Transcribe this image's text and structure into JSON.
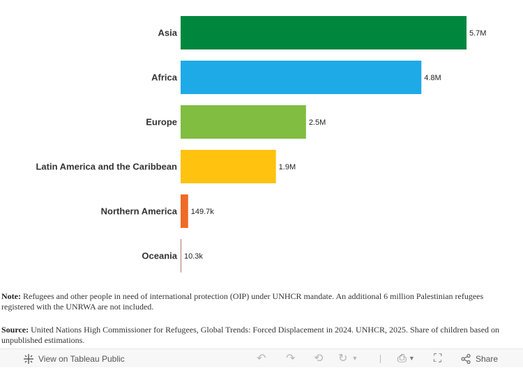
{
  "chart_data": {
    "type": "bar",
    "orientation": "horizontal",
    "categories": [
      "Asia",
      "Africa",
      "Europe",
      "Latin America and the Caribbean",
      "Northern America",
      "Oceania"
    ],
    "values": [
      5700000,
      4800000,
      2500000,
      1900000,
      149700,
      10300
    ],
    "value_labels": [
      "5.7M",
      "4.8M",
      "2.5M",
      "1.9M",
      "149.7k",
      "10.3k"
    ],
    "colors": [
      "#00873e",
      "#1eaae7",
      "#80bd41",
      "#ffc20e",
      "#ef6a25",
      "#a9756a"
    ],
    "title": "",
    "xlabel": "",
    "ylabel": "",
    "grid": false,
    "legend": "none"
  },
  "note": {
    "label": "Note:",
    "text": " Refugees and other people in need of international protection (OIP) under UNHCR mandate. An additional 6 million Palestinian refugees registered with the UNRWA are not included."
  },
  "source": {
    "label": "Source:",
    "text": " United Nations High Commissioner for Refugees, Global Trends: Forced Displacement in 2024. UNHCR, 2025. Share of children based on unpublished estimations."
  },
  "toolbar": {
    "view_label": "View on Tableau Public",
    "share_label": "Share",
    "icons": [
      "tableau-logo-icon",
      "undo-icon",
      "redo-icon",
      "revert-icon",
      "refresh-icon",
      "pause-icon",
      "download-icon",
      "fullscreen-icon",
      "share-icon"
    ]
  }
}
